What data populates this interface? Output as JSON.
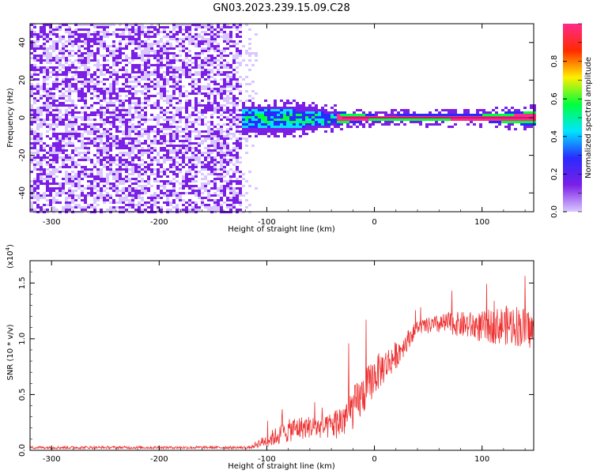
{
  "title": "GN03.2023.239.15.09.C28",
  "chart_data": [
    {
      "type": "heatmap",
      "xlabel": "Height of straight line (km)",
      "ylabel": "Frequency (Hz)",
      "xlim": [
        -320,
        148
      ],
      "ylim": [
        -50,
        50
      ],
      "xticks": [
        -300,
        -200,
        -100,
        0,
        100
      ],
      "yticks": [
        -40,
        -20,
        0,
        20,
        40
      ],
      "noise_region_x": [
        -320,
        -125
      ],
      "signal_band": [
        {
          "x": -125,
          "half_width_hz": 7
        },
        {
          "x": -80,
          "half_width_hz": 7
        },
        {
          "x": -50,
          "half_width_hz": 5
        },
        {
          "x": -30,
          "half_width_hz": 3
        },
        {
          "x": 0,
          "half_width_hz": 1.5
        },
        {
          "x": 100,
          "half_width_hz": 2
        },
        {
          "x": 148,
          "half_width_hz": 4
        }
      ],
      "colorbar": {
        "label": "Normalized spectral amplitude",
        "range": [
          0,
          1
        ],
        "ticks": [
          "0.0",
          "0.2",
          "0.4",
          "0.6",
          "0.8"
        ],
        "colors": [
          "#d9c8ff",
          "#7b1fe6",
          "#2a2aff",
          "#00e5ff",
          "#00ff3c",
          "#ffee00",
          "#ff2a00",
          "#ff2a8a"
        ]
      }
    },
    {
      "type": "line",
      "xlabel": "Height of straight line (km)",
      "ylabel": "SNR (10 * v/v)",
      "exponent_label": "(x10",
      "exponent_sup": "4",
      "exponent_close": ")",
      "xlim": [
        -320,
        148
      ],
      "ylim": [
        0,
        17000
      ],
      "xticks": [
        -300,
        -200,
        -100,
        0,
        100
      ],
      "yticks": [
        "0.0",
        "0.5",
        "1.0",
        "1.5"
      ],
      "color": "#ee3333",
      "envelope": {
        "x": [
          -320,
          -115,
          -110,
          -95,
          -75,
          -60,
          -45,
          -30,
          -15,
          0,
          20,
          40,
          70,
          100,
          130,
          148
        ],
        "base": [
          200,
          200,
          400,
          800,
          1500,
          1700,
          1600,
          2000,
          3500,
          6000,
          8000,
          10800,
          11000,
          10500,
          10500,
          10000
        ],
        "spread": [
          250,
          250,
          600,
          1500,
          2200,
          2000,
          2000,
          3500,
          4000,
          3500,
          2500,
          1200,
          2000,
          2800,
          3800,
          3500
        ]
      }
    }
  ]
}
